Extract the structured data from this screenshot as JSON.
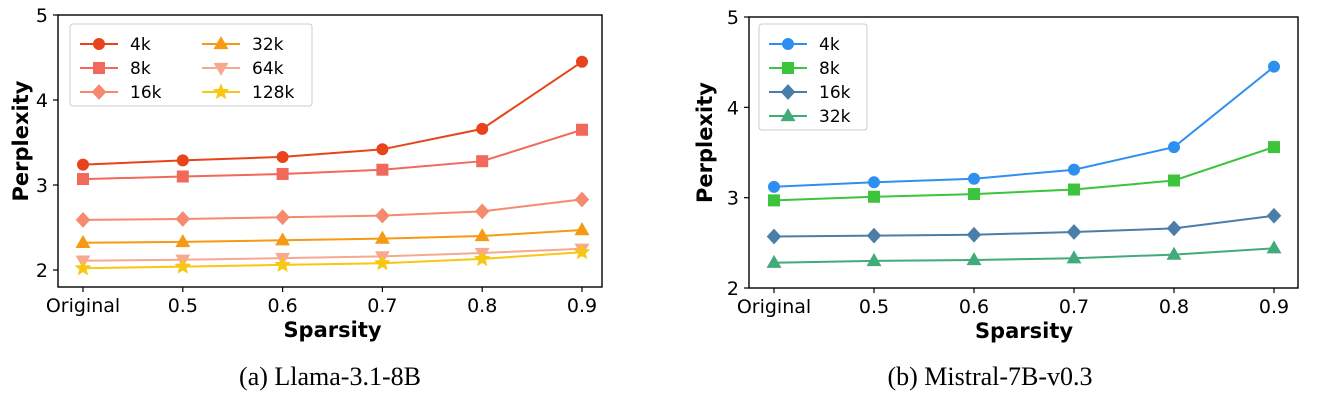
{
  "chart_data": [
    {
      "type": "line",
      "caption": "(a) Llama-3.1-8B",
      "xlabel": "Sparsity",
      "ylabel": "Perplexity",
      "categories": [
        "Original",
        "0.5",
        "0.6",
        "0.7",
        "0.8",
        "0.9"
      ],
      "ylim": [
        1.8,
        5
      ],
      "yticks": [
        2,
        3,
        4,
        5
      ],
      "legend_position": "top-left",
      "legend_columns": 2,
      "series": [
        {
          "name": "4k",
          "marker": "circle",
          "color": "#e8431b",
          "values": [
            3.24,
            3.29,
            3.33,
            3.42,
            3.66,
            4.45
          ]
        },
        {
          "name": "8k",
          "marker": "square",
          "color": "#f0695a",
          "values": [
            3.07,
            3.1,
            3.13,
            3.18,
            3.28,
            3.65
          ]
        },
        {
          "name": "16k",
          "marker": "diamond",
          "color": "#f68a6e",
          "values": [
            2.59,
            2.6,
            2.62,
            2.64,
            2.69,
            2.83
          ]
        },
        {
          "name": "32k",
          "marker": "triangle-up",
          "color": "#f59a12",
          "values": [
            2.32,
            2.33,
            2.35,
            2.37,
            2.4,
            2.47
          ]
        },
        {
          "name": "64k",
          "marker": "triangle-down",
          "color": "#f7a890",
          "values": [
            2.11,
            2.12,
            2.14,
            2.16,
            2.2,
            2.25
          ]
        },
        {
          "name": "128k",
          "marker": "star",
          "color": "#f7c712",
          "values": [
            2.02,
            2.04,
            2.06,
            2.08,
            2.13,
            2.21
          ]
        }
      ]
    },
    {
      "type": "line",
      "caption": "(b) Mistral-7B-v0.3",
      "xlabel": "Sparsity",
      "ylabel": "Perplexity",
      "categories": [
        "Original",
        "0.5",
        "0.6",
        "0.7",
        "0.8",
        "0.9"
      ],
      "ylim": [
        2,
        5
      ],
      "yticks": [
        2,
        3,
        4,
        5
      ],
      "legend_position": "top-left",
      "legend_columns": 1,
      "series": [
        {
          "name": "4k",
          "marker": "circle",
          "color": "#2e8ff0",
          "values": [
            3.12,
            3.17,
            3.21,
            3.31,
            3.56,
            4.45
          ]
        },
        {
          "name": "8k",
          "marker": "square",
          "color": "#3cc43c",
          "values": [
            2.97,
            3.01,
            3.04,
            3.09,
            3.19,
            3.56
          ]
        },
        {
          "name": "16k",
          "marker": "diamond",
          "color": "#4a7ea8",
          "values": [
            2.57,
            2.58,
            2.59,
            2.62,
            2.66,
            2.8
          ]
        },
        {
          "name": "32k",
          "marker": "triangle-up",
          "color": "#42ab7a",
          "values": [
            2.28,
            2.3,
            2.31,
            2.33,
            2.37,
            2.44
          ]
        }
      ]
    }
  ]
}
